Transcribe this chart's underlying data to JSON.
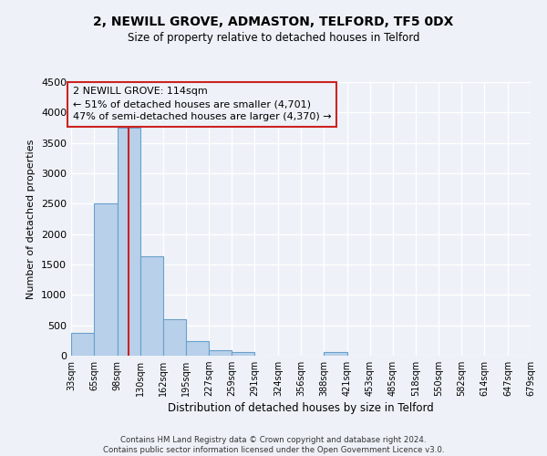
{
  "title": "2, NEWILL GROVE, ADMASTON, TELFORD, TF5 0DX",
  "subtitle": "Size of property relative to detached houses in Telford",
  "xlabel": "Distribution of detached houses by size in Telford",
  "ylabel": "Number of detached properties",
  "footer_line1": "Contains HM Land Registry data © Crown copyright and database right 2024.",
  "footer_line2": "Contains public sector information licensed under the Open Government Licence v3.0.",
  "bar_edges": [
    33,
    65,
    98,
    130,
    162,
    195,
    227,
    259,
    291,
    324,
    356,
    388,
    421,
    453,
    485,
    518,
    550,
    582,
    614,
    647,
    679
  ],
  "bar_heights": [
    380,
    2500,
    3750,
    1640,
    600,
    240,
    95,
    55,
    0,
    0,
    0,
    55,
    0,
    0,
    0,
    0,
    0,
    0,
    0,
    0
  ],
  "bar_color": "#b8d0ea",
  "bar_edge_color": "#6aa0cc",
  "ylim": [
    0,
    4500
  ],
  "yticks": [
    0,
    500,
    1000,
    1500,
    2000,
    2500,
    3000,
    3500,
    4000,
    4500
  ],
  "property_size": 114,
  "vline_x": 114,
  "vline_color": "#cc2222",
  "annotation_text_line1": "2 NEWILL GROVE: 114sqm",
  "annotation_text_line2": "← 51% of detached houses are smaller (4,701)",
  "annotation_text_line3": "47% of semi-detached houses are larger (4,370) →",
  "annotation_box_color": "#cc2222",
  "bg_color": "#eef2f8",
  "grid_color": "#ffffff",
  "tick_labels": [
    "33sqm",
    "65sqm",
    "98sqm",
    "130sqm",
    "162sqm",
    "195sqm",
    "227sqm",
    "259sqm",
    "291sqm",
    "324sqm",
    "356sqm",
    "388sqm",
    "421sqm",
    "453sqm",
    "485sqm",
    "518sqm",
    "550sqm",
    "582sqm",
    "614sqm",
    "647sqm",
    "679sqm"
  ]
}
